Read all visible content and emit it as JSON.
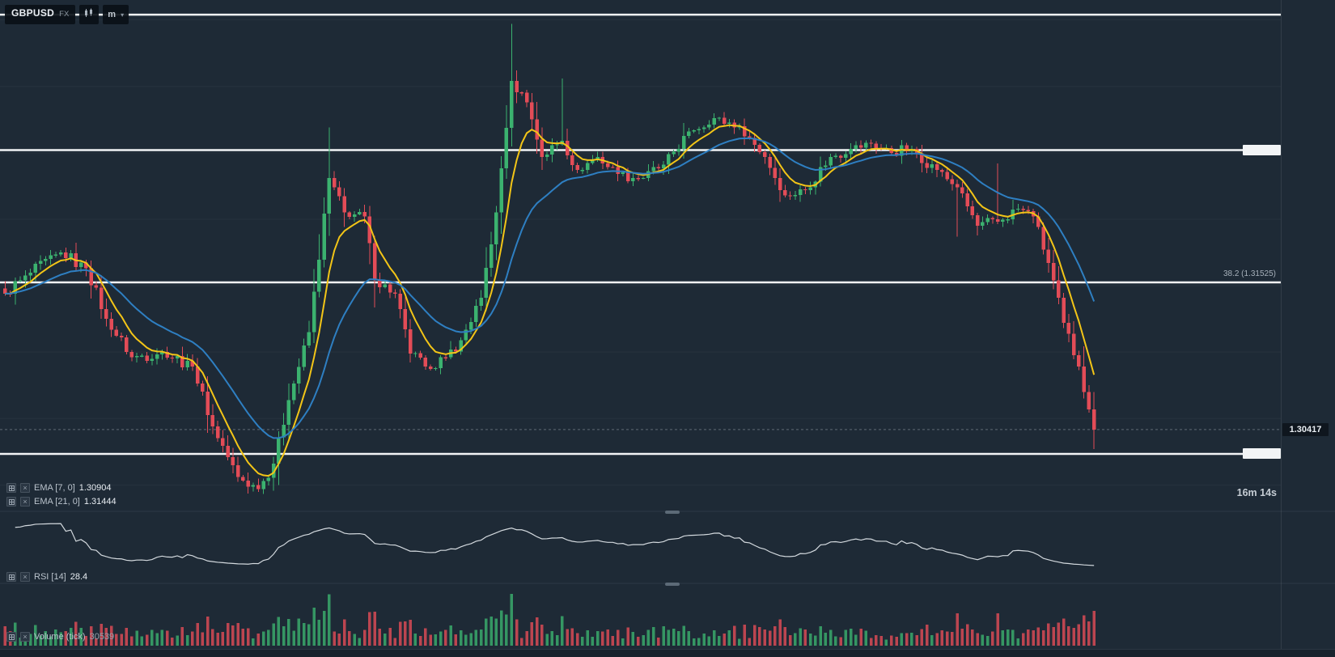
{
  "app": {
    "symbol": "GBPUSD",
    "market": "FX",
    "timeframe": "m",
    "countdown": "16m 14s"
  },
  "icons": {
    "close": "×",
    "caret": "▾"
  },
  "panes": {
    "main": {
      "indicators": [
        {
          "label": "EMA [7, 0]",
          "value": "1.30904"
        },
        {
          "label": "EMA [21, 0]",
          "value": "1.31444"
        }
      ]
    },
    "rsi": {
      "label": "RSI [14]",
      "value": "28.4"
    },
    "volume": {
      "label": "Volume  (tick)",
      "value": "30539"
    }
  },
  "price_scale": {
    "last_price": "1.30417",
    "fib_label": "38.2 (1.31525)"
  },
  "colors": {
    "background": "#1e2a36",
    "up": "#3bb26f",
    "down": "#e34c57",
    "ema_fast": "#f3c517",
    "ema_slow": "#2e7fc2",
    "rsi_line": "#d3d9de",
    "level_line": "#f2f4f6",
    "grid": "rgba(255,255,255,0.045)",
    "divider": "#2c3845",
    "countdown": "#ffa22e",
    "last_price_line": "rgba(205,214,222,0.38)"
  },
  "chart_data": {
    "type": "candlestick",
    "symbol": "GBPUSD",
    "timeframe": "m",
    "bars": 216,
    "y_range": [
      1.29844,
      1.3365
    ],
    "horizontal_levels": [
      1.3354,
      1.3252,
      1.31525,
      1.30234
    ],
    "level_tag_indices": [
      1,
      3
    ],
    "fib_level": {
      "pct": 38.2,
      "price": 1.31525
    },
    "last_price": 1.30417,
    "grid_step": 0.005,
    "price_keyframes": [
      [
        0,
        1.3144
      ],
      [
        3,
        1.3154
      ],
      [
        11,
        1.3175
      ],
      [
        16,
        1.3163
      ],
      [
        20,
        1.3125
      ],
      [
        25,
        1.3096
      ],
      [
        31,
        1.31
      ],
      [
        37,
        1.3089
      ],
      [
        41,
        1.3044
      ],
      [
        46,
        1.3006
      ],
      [
        50,
        1.2997
      ],
      [
        53,
        1.3016
      ],
      [
        56,
        1.3064
      ],
      [
        60,
        1.3115
      ],
      [
        64,
        1.3231
      ],
      [
        67,
        1.3205
      ],
      [
        71,
        1.3202
      ],
      [
        73,
        1.3154
      ],
      [
        77,
        1.3144
      ],
      [
        80,
        1.3099
      ],
      [
        83,
        1.3089
      ],
      [
        87,
        1.3096
      ],
      [
        90,
        1.3109
      ],
      [
        94,
        1.3141
      ],
      [
        97,
        1.3205
      ],
      [
        100,
        1.3304
      ],
      [
        103,
        1.3288
      ],
      [
        106,
        1.3247
      ],
      [
        110,
        1.3259
      ],
      [
        113,
        1.3237
      ],
      [
        117,
        1.3247
      ],
      [
        121,
        1.3234
      ],
      [
        126,
        1.3231
      ],
      [
        130,
        1.3241
      ],
      [
        135,
        1.3266
      ],
      [
        140,
        1.3276
      ],
      [
        145,
        1.327
      ],
      [
        150,
        1.3247
      ],
      [
        154,
        1.3218
      ],
      [
        158,
        1.3222
      ],
      [
        163,
        1.3247
      ],
      [
        167,
        1.3253
      ],
      [
        171,
        1.3257
      ],
      [
        175,
        1.325
      ],
      [
        179,
        1.3253
      ],
      [
        184,
        1.3237
      ],
      [
        188,
        1.3224
      ],
      [
        192,
        1.3195
      ],
      [
        196,
        1.3198
      ],
      [
        200,
        1.3208
      ],
      [
        203,
        1.3202
      ],
      [
        206,
        1.3167
      ],
      [
        209,
        1.3122
      ],
      [
        212,
        1.3089
      ],
      [
        214,
        1.3057
      ],
      [
        215,
        1.30417
      ]
    ],
    "wick_overrides": {
      "64": [
        1.3269,
        null
      ],
      "100": [
        1.3347,
        null
      ],
      "110": [
        1.3306,
        null
      ],
      "188": [
        null,
        1.3187
      ],
      "196": [
        1.3242,
        null
      ],
      "215": [
        null,
        1.3027
      ]
    },
    "overlays": [
      {
        "name": "EMA",
        "period": 7,
        "last": 1.30904
      },
      {
        "name": "EMA",
        "period": 21,
        "last": 1.31444
      }
    ],
    "lower_panes": [
      {
        "name": "RSI",
        "period": 14,
        "last": 28.4
      },
      {
        "name": "Volume",
        "source": "tick",
        "last": 30539
      }
    ]
  }
}
